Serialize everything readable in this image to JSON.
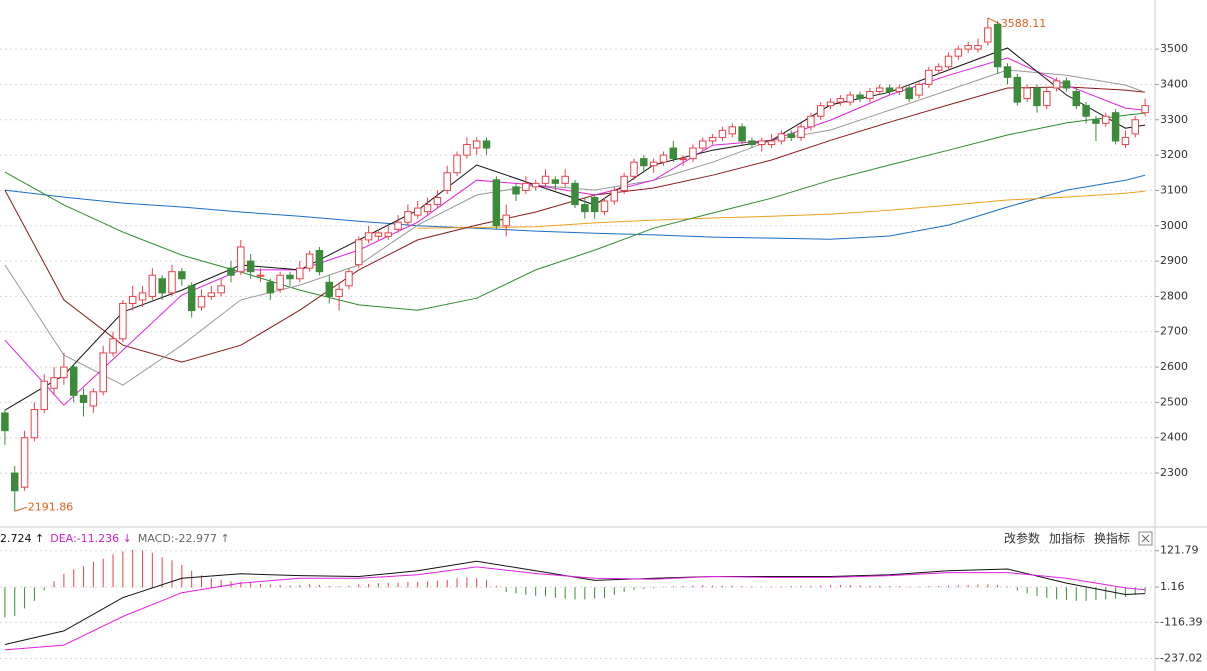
{
  "chart_data": [
    {
      "type": "candlestick",
      "open": [
        2470,
        2300,
        2260,
        2400,
        2480,
        2540,
        2570,
        2600,
        2520,
        2490,
        2530,
        2640,
        2680,
        2780,
        2790,
        2800,
        2850,
        2810,
        2870,
        2830,
        2770,
        2800,
        2810,
        2880,
        2870,
        2900,
        2860,
        2840,
        2820,
        2860,
        2850,
        2880,
        2930,
        2840,
        2800,
        2830,
        2890,
        2960,
        2970,
        2970,
        2990,
        3010,
        3030,
        3040,
        3060,
        3100,
        3150,
        3200,
        3220,
        3240,
        3130,
        3000,
        3110,
        3100,
        3110,
        3120,
        3130,
        3120,
        3120,
        3060,
        3080,
        3040,
        3070,
        3100,
        3140,
        3190,
        3170,
        3180,
        3220,
        3190,
        3190,
        3220,
        3240,
        3250,
        3260,
        3280,
        3240,
        3230,
        3230,
        3240,
        3260,
        3250,
        3280,
        3310,
        3340,
        3350,
        3350,
        3370,
        3360,
        3380,
        3390,
        3380,
        3390,
        3370,
        3400,
        3440,
        3450,
        3480,
        3500,
        3500,
        3520,
        3570,
        3450,
        3420,
        3360,
        3390,
        3340,
        3390,
        3410,
        3380,
        3340,
        3300,
        3290,
        3320,
        3230,
        3260,
        3320
      ],
      "high": [
        2480,
        2320,
        2420,
        2500,
        2580,
        2600,
        2640,
        2610,
        2540,
        2540,
        2660,
        2700,
        2790,
        2830,
        2830,
        2880,
        2860,
        2890,
        2880,
        2840,
        2820,
        2830,
        2850,
        2900,
        2960,
        2920,
        2880,
        2850,
        2870,
        2870,
        2900,
        2930,
        2940,
        2860,
        2840,
        2880,
        2970,
        3000,
        2990,
        3000,
        3030,
        3060,
        3070,
        3080,
        3100,
        3170,
        3210,
        3250,
        3250,
        3250,
        3140,
        3060,
        3120,
        3140,
        3130,
        3160,
        3140,
        3160,
        3130,
        3080,
        3090,
        3080,
        3110,
        3150,
        3190,
        3200,
        3190,
        3210,
        3240,
        3200,
        3230,
        3250,
        3260,
        3280,
        3290,
        3290,
        3250,
        3250,
        3260,
        3270,
        3270,
        3290,
        3320,
        3350,
        3360,
        3370,
        3380,
        3380,
        3390,
        3400,
        3400,
        3400,
        3400,
        3410,
        3450,
        3460,
        3490,
        3510,
        3520,
        3530,
        3588.11,
        3580,
        3460,
        3430,
        3400,
        3400,
        3390,
        3420,
        3420,
        3390,
        3350,
        3310,
        3320,
        3330,
        3270,
        3310,
        3360
      ],
      "low": [
        2380,
        2191.86,
        2250,
        2390,
        2470,
        2520,
        2550,
        2500,
        2460,
        2470,
        2520,
        2630,
        2670,
        2760,
        2770,
        2790,
        2790,
        2800,
        2830,
        2740,
        2760,
        2790,
        2800,
        2840,
        2860,
        2850,
        2840,
        2790,
        2810,
        2830,
        2840,
        2870,
        2860,
        2780,
        2760,
        2820,
        2880,
        2950,
        2960,
        2960,
        2980,
        3000,
        3020,
        3030,
        3050,
        3090,
        3140,
        3190,
        3200,
        3200,
        2990,
        2970,
        3070,
        3090,
        3100,
        3110,
        3100,
        3110,
        3050,
        3020,
        3020,
        3030,
        3060,
        3090,
        3130,
        3150,
        3150,
        3170,
        3180,
        3170,
        3180,
        3210,
        3230,
        3240,
        3250,
        3230,
        3220,
        3210,
        3220,
        3230,
        3240,
        3240,
        3270,
        3300,
        3330,
        3340,
        3340,
        3350,
        3350,
        3370,
        3370,
        3370,
        3350,
        3360,
        3390,
        3430,
        3440,
        3470,
        3490,
        3490,
        3510,
        3430,
        3400,
        3340,
        3350,
        3320,
        3330,
        3380,
        3380,
        3330,
        3290,
        3240,
        3280,
        3230,
        3220,
        3250,
        3310
      ],
      "close": [
        2420,
        2250,
        2400,
        2480,
        2560,
        2570,
        2600,
        2520,
        2500,
        2530,
        2640,
        2680,
        2780,
        2800,
        2810,
        2860,
        2810,
        2870,
        2850,
        2760,
        2800,
        2810,
        2830,
        2860,
        2940,
        2870,
        2860,
        2810,
        2860,
        2850,
        2880,
        2920,
        2870,
        2800,
        2820,
        2870,
        2960,
        2980,
        2980,
        2980,
        3010,
        3040,
        3050,
        3060,
        3080,
        3150,
        3200,
        3230,
        3240,
        3220,
        3000,
        3030,
        3090,
        3120,
        3120,
        3140,
        3120,
        3140,
        3060,
        3040,
        3040,
        3070,
        3100,
        3140,
        3180,
        3170,
        3180,
        3200,
        3190,
        3190,
        3220,
        3240,
        3250,
        3270,
        3280,
        3240,
        3230,
        3240,
        3240,
        3260,
        3250,
        3280,
        3310,
        3340,
        3350,
        3360,
        3370,
        3360,
        3380,
        3390,
        3380,
        3390,
        3360,
        3400,
        3440,
        3450,
        3480,
        3500,
        3510,
        3510,
        3560,
        3450,
        3420,
        3350,
        3390,
        3340,
        3380,
        3410,
        3390,
        3340,
        3310,
        3290,
        3310,
        3240,
        3250,
        3300,
        3340
      ],
      "up_color": "#e8434b",
      "down_color": "#3b8b3b",
      "lines": [
        {
          "color": "#1a6fc2",
          "x": [
            0,
            6,
            12,
            18,
            24,
            30,
            36,
            42,
            48,
            54,
            60,
            66,
            72,
            78,
            84,
            90,
            96,
            102,
            108,
            114,
            116
          ],
          "values": [
            3101,
            3081,
            3064,
            3053,
            3039,
            3027,
            3013,
            3000,
            2993,
            2985,
            2979,
            2974,
            2968,
            2965,
            2962,
            2971,
            3002,
            3053,
            3101,
            3129,
            3143
          ]
        },
        {
          "color": "#f0a020",
          "x": [
            0,
            6,
            12,
            18,
            24,
            30,
            36,
            42,
            48,
            54,
            60,
            66,
            72,
            78,
            84,
            90,
            96,
            102,
            108,
            114,
            116
          ],
          "values": [
            null,
            null,
            null,
            null,
            null,
            null,
            null,
            2993,
            2995,
            2997,
            3008,
            3016,
            3022,
            3027,
            3033,
            3044,
            3058,
            3073,
            3081,
            3092,
            3098
          ]
        },
        {
          "color": "#2e8b2e",
          "x": [
            0,
            6,
            12,
            18,
            24,
            30,
            36,
            42,
            48,
            54,
            60,
            66,
            72,
            78,
            84,
            90,
            96,
            102,
            108,
            114,
            116
          ],
          "values": [
            3152,
            3059,
            2982,
            2917,
            2869,
            2818,
            2776,
            2761,
            2795,
            2875,
            2931,
            2993,
            3036,
            3078,
            3129,
            3172,
            3214,
            3257,
            3291,
            3313,
            3319
          ]
        },
        {
          "color": "#8b1a1a",
          "x": [
            0,
            6,
            12,
            18,
            24,
            30,
            36,
            42,
            48,
            54,
            60,
            66,
            72,
            78,
            84,
            90,
            96,
            102,
            108,
            114,
            116
          ],
          "values": [
            3101,
            2790,
            2662,
            2614,
            2662,
            2761,
            2875,
            2960,
            3002,
            3039,
            3087,
            3107,
            3143,
            3186,
            3242,
            3293,
            3342,
            3390,
            3393,
            3384,
            3378
          ]
        },
        {
          "color": "#999999",
          "x": [
            0,
            6,
            12,
            18,
            24,
            30,
            36,
            42,
            48,
            54,
            60,
            66,
            72,
            78,
            84,
            90,
            96,
            102,
            108,
            114,
            116
          ],
          "values": [
            2889,
            2634,
            2549,
            2662,
            2790,
            2832,
            2889,
            3002,
            3087,
            3115,
            3101,
            3129,
            3180,
            3242,
            3271,
            3327,
            3384,
            3441,
            3426,
            3398,
            3378
          ]
        },
        {
          "color": "#e020e0",
          "x": [
            0,
            6,
            12,
            18,
            24,
            30,
            36,
            42,
            48,
            54,
            60,
            66,
            72,
            78,
            84,
            90,
            96,
            102,
            108,
            114,
            116
          ],
          "values": [
            2676,
            2492,
            2648,
            2804,
            2875,
            2875,
            2931,
            3010,
            3129,
            3115,
            3087,
            3129,
            3228,
            3242,
            3299,
            3370,
            3426,
            3475,
            3398,
            3333,
            3327
          ]
        },
        {
          "color": "#111111",
          "x": [
            0,
            6,
            12,
            18,
            24,
            30,
            36,
            42,
            48,
            54,
            60,
            66,
            72,
            78,
            84,
            90,
            96,
            102,
            108,
            114,
            116
          ],
          "values": [
            2478,
            2577,
            2756,
            2818,
            2889,
            2875,
            2960,
            3044,
            3172,
            3115,
            3059,
            3172,
            3214,
            3242,
            3342,
            3378,
            3441,
            3503,
            3370,
            3276,
            3285
          ]
        }
      ],
      "ylim": [
        2153,
        3639
      ],
      "yticks": [
        2300,
        2400,
        2500,
        2600,
        2700,
        2800,
        2900,
        3000,
        3100,
        3200,
        3300,
        3400,
        3500
      ],
      "grid": true,
      "annotation_color": "#e06020"
    },
    {
      "type": "macd",
      "header": [
        {
          "text": "2.724 ↑",
          "color": "#111111"
        },
        {
          "text": "DEA:-11.236 ↓",
          "color": "#d020d0"
        },
        {
          "text": "MACD:-22.977 ↑",
          "color": "#666666"
        }
      ],
      "buttons": [
        "改参数",
        "加指标",
        "换指标"
      ],
      "histogram": [
        -100,
        -95,
        -70,
        -45,
        -10,
        20,
        45,
        60,
        70,
        85,
        95,
        110,
        120,
        125,
        122,
        115,
        100,
        90,
        75,
        55,
        40,
        30,
        25,
        20,
        18,
        15,
        12,
        10,
        8,
        6,
        8,
        10,
        8,
        5,
        4,
        6,
        10,
        12,
        14,
        15,
        16,
        18,
        18,
        20,
        22,
        25,
        30,
        33,
        30,
        25,
        5,
        -15,
        -20,
        -25,
        -28,
        -30,
        -35,
        -38,
        -40,
        -40,
        -38,
        -35,
        -25,
        -15,
        -8,
        -5,
        -3,
        2,
        4,
        5,
        6,
        7,
        6,
        5,
        5,
        4,
        3,
        2,
        2,
        3,
        4,
        5,
        5,
        6,
        7,
        8,
        8,
        7,
        6,
        5,
        4,
        4,
        3,
        3,
        4,
        5,
        6,
        7,
        8,
        9,
        10,
        8,
        3,
        -10,
        -20,
        -28,
        -35,
        -40,
        -42,
        -45,
        -45,
        -42,
        -40,
        -38,
        -32,
        -25,
        -18
      ],
      "up_color": "#e8434b",
      "down_color": "#3b8b3b",
      "lines": [
        {
          "color": "#111111",
          "x": [
            0,
            6,
            12,
            18,
            24,
            30,
            36,
            42,
            48,
            54,
            60,
            66,
            72,
            78,
            84,
            90,
            96,
            102,
            108,
            114,
            116
          ],
          "values": [
            -190,
            -145,
            -34,
            30,
            45,
            39,
            36,
            55,
            87,
            55,
            23,
            30,
            36,
            36,
            36,
            42,
            55,
            61,
            14,
            -24,
            -21
          ]
        },
        {
          "color": "#e020e0",
          "x": [
            0,
            6,
            12,
            18,
            24,
            30,
            36,
            42,
            48,
            54,
            60,
            66,
            72,
            78,
            84,
            90,
            96,
            102,
            108,
            114,
            116
          ],
          "values": [
            -208,
            -192,
            -97,
            -18,
            14,
            30,
            30,
            42,
            68,
            46,
            30,
            27,
            36,
            33,
            33,
            39,
            49,
            49,
            30,
            -2,
            -8
          ]
        }
      ],
      "ylim": [
        -278.3,
        140.8
      ],
      "yticks": [
        121.79,
        1.16,
        -116.39,
        -237.02
      ],
      "grid": true
    }
  ]
}
